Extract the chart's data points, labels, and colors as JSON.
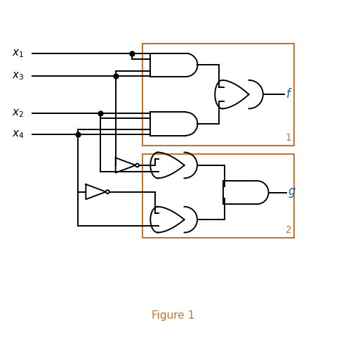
{
  "title": "Figure 1",
  "title_color": "#c07830",
  "box_color": "#c07830",
  "wire_color": "#000000",
  "gate_color": "#000000",
  "label_color": "#000000",
  "output_label_color": "#1a6090",
  "figsize": [
    4.93,
    4.79
  ],
  "dpi": 100,
  "xlim": [
    0,
    10
  ],
  "ylim": [
    0,
    10
  ]
}
